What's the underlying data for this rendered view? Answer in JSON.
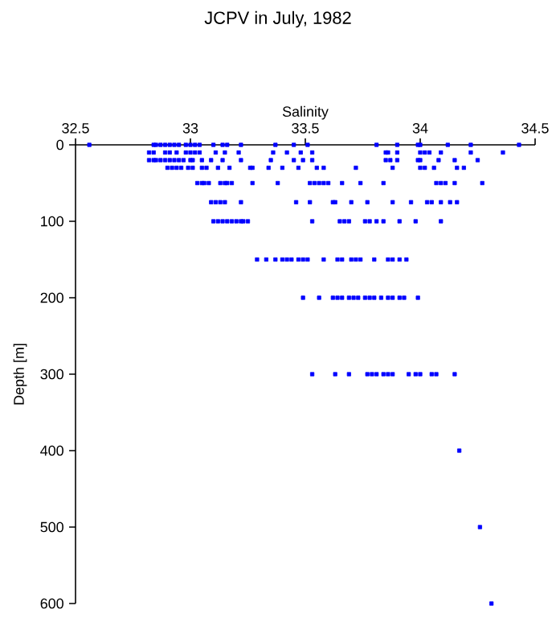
{
  "chart_data": {
    "type": "scatter",
    "title": "JCPV in July, 1982",
    "xlabel": "Salinity",
    "ylabel": "Depth [m]",
    "xlim": [
      32.5,
      34.5
    ],
    "xticks": [
      32.5,
      33,
      33.5,
      34,
      34.5
    ],
    "ylim": [
      600,
      0
    ],
    "yticks": [
      0,
      100,
      200,
      300,
      400,
      500,
      600
    ],
    "marker": "square",
    "grid": false,
    "series": [
      {
        "color": "#0000ff",
        "x": [
          32.56,
          32.84,
          32.85,
          32.87,
          32.89,
          32.91,
          32.93,
          32.95,
          32.98,
          33.0,
          33.02,
          33.04,
          33.1,
          33.14,
          33.16,
          33.22,
          33.37,
          33.45,
          33.51,
          33.81,
          33.9,
          33.99,
          34.0,
          34.12,
          34.22,
          34.43,
          32.82,
          32.84,
          32.89,
          32.91,
          32.94,
          32.98,
          33.0,
          33.02,
          33.04,
          33.11,
          33.15,
          33.21,
          33.36,
          33.42,
          33.48,
          33.53,
          33.85,
          33.86,
          33.9,
          34.0,
          34.02,
          34.04,
          34.09,
          34.22,
          34.36,
          32.82,
          32.84,
          32.85,
          32.87,
          32.89,
          32.91,
          32.93,
          32.95,
          32.97,
          33.0,
          33.01,
          33.05,
          33.09,
          33.14,
          33.22,
          33.35,
          33.45,
          33.49,
          33.53,
          33.85,
          33.87,
          33.9,
          33.99,
          34.0,
          34.08,
          34.15,
          34.25,
          32.9,
          32.92,
          32.94,
          32.96,
          32.99,
          33.01,
          33.05,
          33.07,
          33.12,
          33.17,
          33.26,
          33.27,
          33.34,
          33.4,
          33.47,
          33.55,
          33.58,
          33.72,
          33.88,
          34.0,
          34.02,
          34.06,
          34.16,
          34.19,
          33.03,
          33.05,
          33.06,
          33.08,
          33.13,
          33.15,
          33.16,
          33.18,
          33.27,
          33.38,
          33.52,
          33.54,
          33.56,
          33.58,
          33.6,
          33.66,
          33.74,
          33.84,
          34.07,
          34.09,
          34.11,
          34.15,
          34.27,
          33.09,
          33.11,
          33.13,
          33.15,
          33.22,
          33.46,
          33.52,
          33.62,
          33.63,
          33.7,
          33.77,
          33.88,
          33.96,
          34.03,
          34.05,
          34.09,
          34.13,
          34.16,
          33.1,
          33.12,
          33.14,
          33.16,
          33.18,
          33.2,
          33.22,
          33.23,
          33.25,
          33.53,
          33.65,
          33.67,
          33.69,
          33.76,
          33.78,
          33.81,
          33.84,
          33.91,
          33.98,
          34.09,
          33.29,
          33.33,
          33.37,
          33.4,
          33.42,
          33.44,
          33.47,
          33.49,
          33.51,
          33.58,
          33.64,
          33.66,
          33.7,
          33.72,
          33.74,
          33.8,
          33.86,
          33.88,
          33.91,
          33.94,
          33.49,
          33.56,
          33.62,
          33.64,
          33.66,
          33.69,
          33.71,
          33.73,
          33.76,
          33.78,
          33.8,
          33.83,
          33.86,
          33.88,
          33.91,
          33.93,
          33.99,
          33.53,
          33.63,
          33.69,
          33.77,
          33.79,
          33.81,
          33.84,
          33.86,
          33.88,
          33.95,
          33.98,
          34.0,
          34.05,
          34.07,
          34.15,
          34.17,
          34.26,
          34.31
        ],
        "values": [
          0,
          0,
          0,
          0,
          0,
          0,
          0,
          0,
          0,
          0,
          0,
          0,
          0,
          0,
          0,
          0,
          0,
          0,
          0,
          0,
          0,
          0,
          0,
          0,
          0,
          0,
          10,
          10,
          10,
          10,
          10,
          10,
          10,
          10,
          10,
          10,
          10,
          10,
          10,
          10,
          10,
          10,
          10,
          10,
          10,
          10,
          10,
          10,
          10,
          10,
          10,
          20,
          20,
          20,
          20,
          20,
          20,
          20,
          20,
          20,
          20,
          20,
          20,
          20,
          20,
          20,
          20,
          20,
          20,
          20,
          20,
          20,
          20,
          20,
          20,
          20,
          20,
          20,
          30,
          30,
          30,
          30,
          30,
          30,
          30,
          30,
          30,
          30,
          30,
          30,
          30,
          30,
          30,
          30,
          30,
          30,
          30,
          30,
          30,
          30,
          30,
          30,
          50,
          50,
          50,
          50,
          50,
          50,
          50,
          50,
          50,
          50,
          50,
          50,
          50,
          50,
          50,
          50,
          50,
          50,
          50,
          50,
          50,
          50,
          50,
          75,
          75,
          75,
          75,
          75,
          75,
          75,
          75,
          75,
          75,
          75,
          75,
          75,
          75,
          75,
          75,
          75,
          75,
          100,
          100,
          100,
          100,
          100,
          100,
          100,
          100,
          100,
          100,
          100,
          100,
          100,
          100,
          100,
          100,
          100,
          100,
          100,
          100,
          150,
          150,
          150,
          150,
          150,
          150,
          150,
          150,
          150,
          150,
          150,
          150,
          150,
          150,
          150,
          150,
          150,
          150,
          150,
          150,
          200,
          200,
          200,
          200,
          200,
          200,
          200,
          200,
          200,
          200,
          200,
          200,
          200,
          200,
          200,
          200,
          200,
          300,
          300,
          300,
          300,
          300,
          300,
          300,
          300,
          300,
          300,
          300,
          300,
          300,
          300,
          300,
          400,
          500,
          600
        ]
      }
    ]
  }
}
